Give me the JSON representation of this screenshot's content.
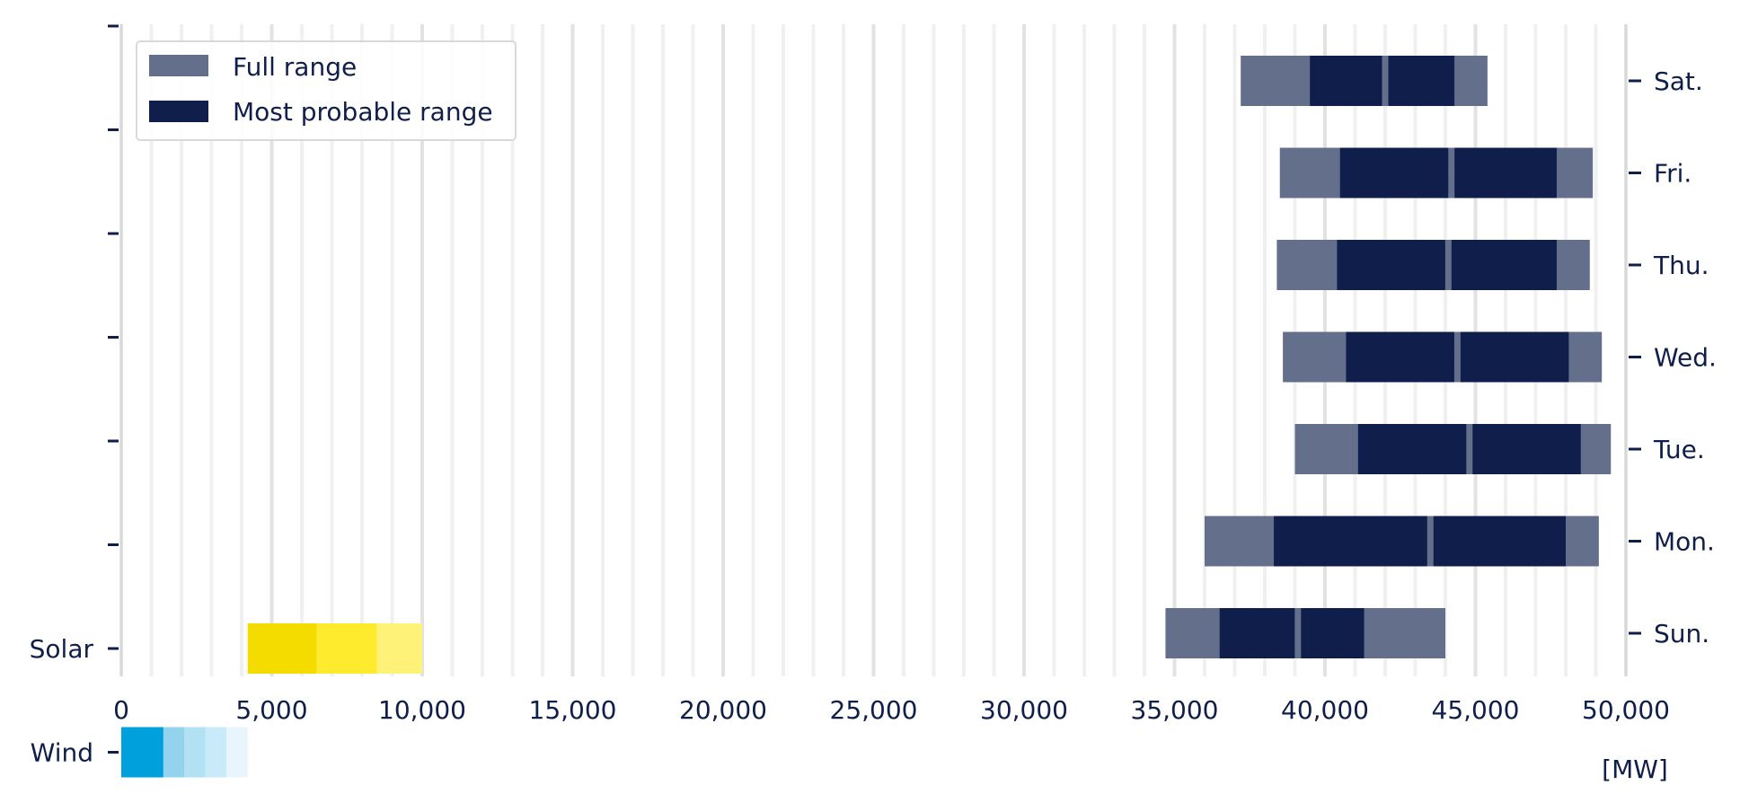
{
  "chart_data": {
    "type": "bar",
    "orientation": "horizontal",
    "xlabel": "",
    "unit": "[MW]",
    "xlim": [
      0,
      50000
    ],
    "x_ticks": [
      0,
      5000,
      10000,
      15000,
      20000,
      25000,
      30000,
      35000,
      40000,
      45000,
      50000
    ],
    "x_tick_labels": [
      "0",
      "5,000",
      "10,000",
      "15,000",
      "20,000",
      "25,000",
      "30,000",
      "35,000",
      "40,000",
      "45,000",
      "50,000"
    ],
    "grid": true,
    "legend": {
      "position": "top-left",
      "items": [
        {
          "label": "Full range",
          "color": "#646f8c"
        },
        {
          "label": "Most probable range",
          "color": "#0f1e4b"
        }
      ]
    },
    "left_axis": {
      "labels": [
        "Wind",
        "Solar",
        "",
        "",
        "",
        "",
        ""
      ]
    },
    "right_axis": {
      "labels": [
        "Sun.",
        "Mon.",
        "Tue.",
        "Wed.",
        "Thu.",
        "Fri.",
        "Sat."
      ]
    },
    "demand_ranges": [
      {
        "day": "Sun.",
        "full_range": [
          34700,
          44000
        ],
        "most_probable_range": [
          36500,
          41300
        ],
        "split": 39100
      },
      {
        "day": "Mon.",
        "full_range": [
          36000,
          49100
        ],
        "most_probable_range": [
          38300,
          48000
        ],
        "split": 43500
      },
      {
        "day": "Tue.",
        "full_range": [
          39000,
          49500
        ],
        "most_probable_range": [
          41100,
          48500
        ],
        "split": 44800
      },
      {
        "day": "Wed.",
        "full_range": [
          38600,
          49200
        ],
        "most_probable_range": [
          40700,
          48100
        ],
        "split": 44400
      },
      {
        "day": "Thu.",
        "full_range": [
          38400,
          48800
        ],
        "most_probable_range": [
          40400,
          47700
        ],
        "split": 44100
      },
      {
        "day": "Fri.",
        "full_range": [
          38500,
          48900
        ],
        "most_probable_range": [
          40500,
          47700
        ],
        "split": 44200
      },
      {
        "day": "Sat.",
        "full_range": [
          37200,
          45400
        ],
        "most_probable_range": [
          39500,
          44300
        ],
        "split": 42000
      }
    ],
    "renewables": [
      {
        "name": "Wind",
        "segments": [
          {
            "from": 0,
            "to": 1400,
            "color": "#00a0dc"
          },
          {
            "from": 1400,
            "to": 2100,
            "color": "#93d3ee"
          },
          {
            "from": 2100,
            "to": 2800,
            "color": "#b3e1f4"
          },
          {
            "from": 2800,
            "to": 3500,
            "color": "#c9eaf8"
          },
          {
            "from": 3500,
            "to": 4200,
            "color": "#e8f5fc"
          }
        ]
      },
      {
        "name": "Solar",
        "segments": [
          {
            "from": 4200,
            "to": 6500,
            "color": "#f5dc00"
          },
          {
            "from": 6500,
            "to": 8500,
            "color": "#ffeb2d"
          },
          {
            "from": 8500,
            "to": 10000,
            "color": "#fff278"
          }
        ]
      }
    ]
  }
}
